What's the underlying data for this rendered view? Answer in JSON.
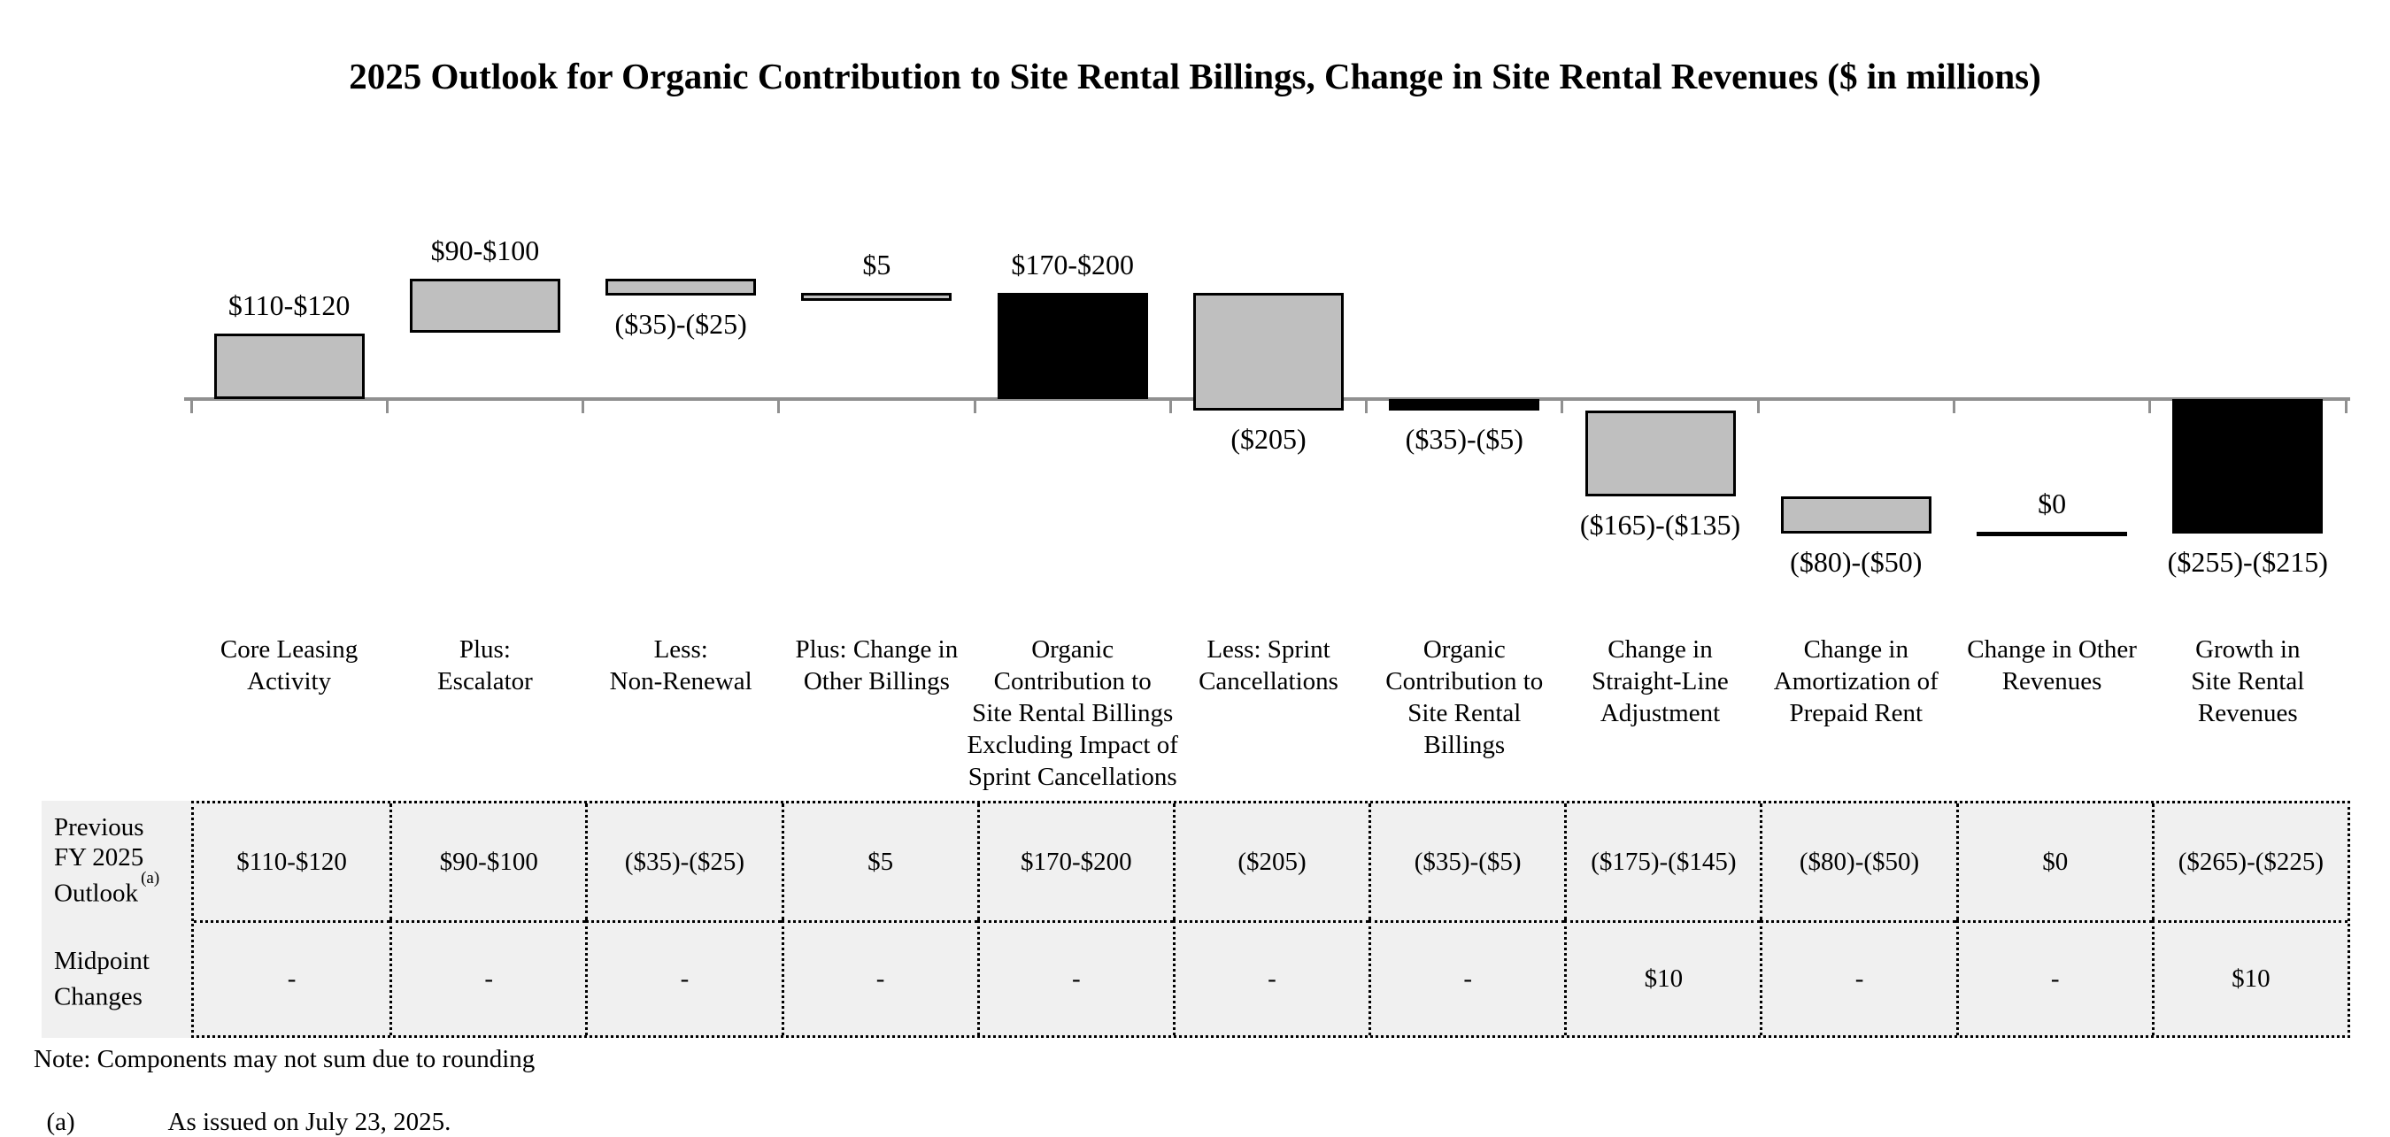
{
  "title": "2025 Outlook for Organic Contribution to Site Rental Billings, Change in Site Rental Revenues ($ in millions)",
  "colors": {
    "bar_gray": "#bfbfbf",
    "bar_black": "#000000",
    "axis_gray": "#909090",
    "table_background": "#f0f0f0",
    "text": "#000000"
  },
  "chart_data": {
    "type": "bar",
    "subtype": "waterfall",
    "units": "$ in millions",
    "grid": false,
    "legend": false,
    "value_axis_range": [
      -235,
      210
    ],
    "categories": [
      "Core Leasing Activity",
      "Plus: Escalator",
      "Less: Non-Renewal",
      "Plus: Change in Other Billings",
      "Organic Contribution to Site Rental Billings Excluding Impact of Sprint Cancellations",
      "Less: Sprint Cancellations",
      "Organic Contribution to Site Rental Billings",
      "Change in Straight-Line Adjustment",
      "Change in Amortization of Prepaid Rent",
      "Change in Other Revenues",
      "Growth in Site Rental Revenues"
    ],
    "bars": [
      {
        "category": "Core Leasing\nActivity",
        "value_label": "$110-$120",
        "label_position": "above",
        "style": "gray",
        "start": 0,
        "end": 115
      },
      {
        "category": "Plus:\nEscalator",
        "value_label": "$90-$100",
        "label_position": "above",
        "style": "gray",
        "start": 115,
        "end": 210
      },
      {
        "category": "Less:\nNon-Renewal",
        "value_label": "($35)-($25)",
        "label_position": "below",
        "style": "gray",
        "start": 210,
        "end": 180
      },
      {
        "category": "Plus: Change in\nOther Billings",
        "value_label": "$5",
        "label_position": "above",
        "style": "gray",
        "start": 180,
        "end": 185
      },
      {
        "category": "Organic\nContribution to\nSite Rental Billings\nExcluding Impact of\nSprint Cancellations",
        "value_label": "$170-$200",
        "label_position": "above",
        "style": "black",
        "start": 0,
        "end": 185
      },
      {
        "category": "Less: Sprint\nCancellations",
        "value_label": "($205)",
        "label_position": "below",
        "style": "gray",
        "start": 185,
        "end": -20
      },
      {
        "category": "Organic\nContribution to\nSite Rental\nBillings",
        "value_label": "($35)-($5)",
        "label_position": "below",
        "style": "black",
        "start": 0,
        "end": -20
      },
      {
        "category": "Change in\nStraight-Line\nAdjustment",
        "value_label": "($165)-($135)",
        "label_position": "below",
        "style": "gray",
        "start": -20,
        "end": -170
      },
      {
        "category": "Change in\nAmortization of\nPrepaid Rent",
        "value_label": "($80)-($50)",
        "label_position": "below",
        "style": "gray",
        "start": -170,
        "end": -235
      },
      {
        "category": "Change in Other\nRevenues",
        "value_label": "$0",
        "label_position": "above",
        "style": "black-line",
        "start": -235,
        "end": -235
      },
      {
        "category": "Growth in\nSite Rental\nRevenues",
        "value_label": "($255)-($215)",
        "label_position": "below",
        "style": "black",
        "start": 0,
        "end": -235
      }
    ]
  },
  "table": {
    "rows": [
      {
        "header": "Previous\nFY 2025\nOutlook",
        "header_sup": "(a)",
        "values": [
          "$110-$120",
          "$90-$100",
          "($35)-($25)",
          "$5",
          "$170-$200",
          "($205)",
          "($35)-($5)",
          "($175)-($145)",
          "($80)-($50)",
          "$0",
          "($265)-($225)"
        ]
      },
      {
        "header": "Midpoint\nChanges",
        "header_sup": "",
        "values": [
          "-",
          "-",
          "-",
          "-",
          "-",
          "-",
          "-",
          "$10",
          "-",
          "-",
          "$10"
        ]
      }
    ]
  },
  "notes": {
    "note": "Note: Components may not sum due to rounding",
    "footnote_marker": "(a)",
    "footnote_text": "As issued on July 23, 2025."
  }
}
